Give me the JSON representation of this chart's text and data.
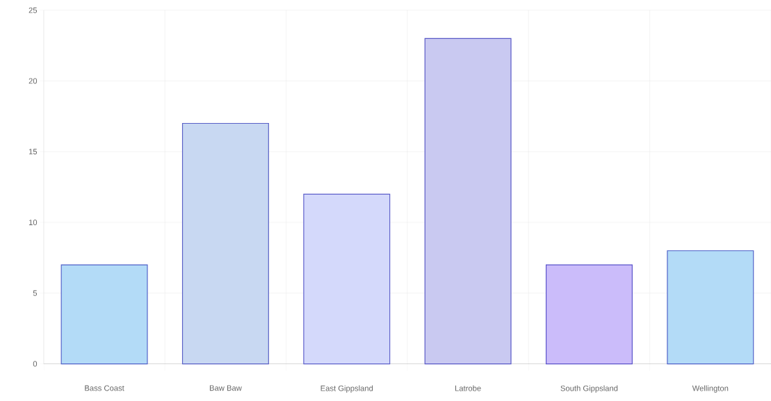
{
  "chart_data": {
    "type": "bar",
    "categories": [
      "Bass Coast",
      "Baw Baw",
      "East Gippsland",
      "Latrobe",
      "South Gippsland",
      "Wellington"
    ],
    "values": [
      7,
      17,
      12,
      23,
      7,
      8
    ],
    "colors": [
      "#b3dbf7",
      "#c8d8f2",
      "#d4d9fb",
      "#c9c9f1",
      "#cbbcfa",
      "#b3dbf7"
    ],
    "ylim": [
      0,
      25
    ],
    "yticks": [
      0,
      5,
      10,
      15,
      20,
      25
    ],
    "grid": true
  }
}
